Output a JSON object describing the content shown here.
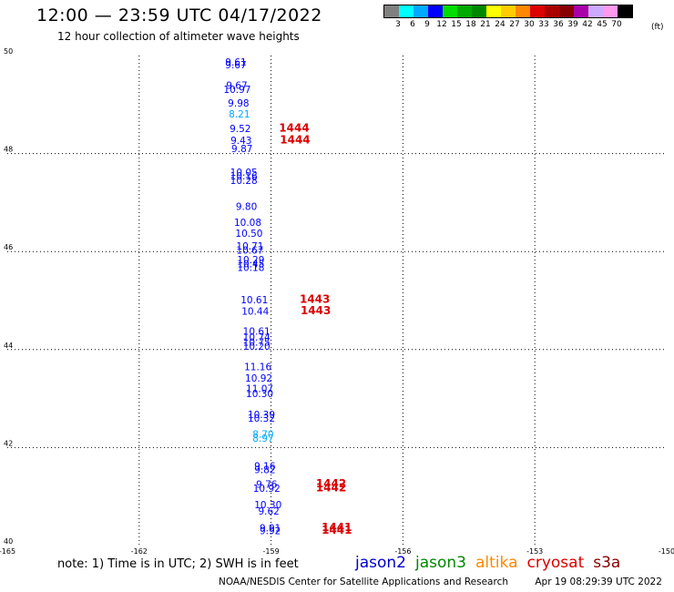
{
  "title": "12:00 — 23:59 UTC 04/17/2022",
  "subtitle": "12 hour collection of altimeter wave heights",
  "color_scale": {
    "unit": "(ft)",
    "colors": [
      "#808080",
      "#00ffff",
      "#00aaff",
      "#0000ff",
      "#00dd00",
      "#00aa00",
      "#008800",
      "#ffff00",
      "#ffcc00",
      "#ff8800",
      "#dd0000",
      "#aa0000",
      "#880000",
      "#aa00aa",
      "#ccaaff",
      "#ff99ee",
      "#000000"
    ],
    "labels": [
      "3",
      "6",
      "9",
      "12",
      "15",
      "18",
      "21",
      "24",
      "27",
      "30",
      "33",
      "36",
      "39",
      "42",
      "45",
      "70"
    ]
  },
  "map": {
    "lat_range": [
      40,
      50
    ],
    "lon_range": [
      -165,
      -150
    ],
    "lat_ticks": [
      "50",
      "48",
      "46",
      "44",
      "42",
      "40"
    ],
    "lon_ticks": [
      "-165",
      "-162",
      "-159",
      "-156",
      "-153",
      "-150"
    ],
    "grid": true,
    "observations": [
      {
        "lat": 49.8,
        "lon": -159.8,
        "value": "9.61",
        "color": "#0000ff"
      },
      {
        "lat": 49.74,
        "lon": -159.8,
        "value": "9.67",
        "color": "#0000ff"
      },
      {
        "lat": 49.32,
        "lon": -159.78,
        "value": "9.67",
        "color": "#0000ff"
      },
      {
        "lat": 49.24,
        "lon": -159.77,
        "value": "10.97",
        "color": "#0000ff"
      },
      {
        "lat": 48.96,
        "lon": -159.74,
        "value": "9.98",
        "color": "#0000ff"
      },
      {
        "lat": 48.74,
        "lon": -159.72,
        "value": "8.21",
        "color": "#00aaff"
      },
      {
        "lat": 48.44,
        "lon": -159.7,
        "value": "9.52",
        "color": "#0000ff"
      },
      {
        "lat": 48.2,
        "lon": -159.68,
        "value": "9.43",
        "color": "#0000ff"
      },
      {
        "lat": 48.03,
        "lon": -159.66,
        "value": "9.87",
        "color": "#0000ff"
      },
      {
        "lat": 47.55,
        "lon": -159.62,
        "value": "10.05",
        "color": "#0000ff"
      },
      {
        "lat": 47.47,
        "lon": -159.62,
        "value": "10.16",
        "color": "#0000ff"
      },
      {
        "lat": 47.38,
        "lon": -159.62,
        "value": "10.28",
        "color": "#0000ff"
      },
      {
        "lat": 46.85,
        "lon": -159.56,
        "value": "9.80",
        "color": "#0000ff"
      },
      {
        "lat": 46.52,
        "lon": -159.53,
        "value": "10.08",
        "color": "#0000ff"
      },
      {
        "lat": 46.3,
        "lon": -159.5,
        "value": "10.50",
        "color": "#0000ff"
      },
      {
        "lat": 46.04,
        "lon": -159.48,
        "value": "10.71",
        "color": "#0000ff"
      },
      {
        "lat": 45.96,
        "lon": -159.48,
        "value": "10.67",
        "color": "#0000ff"
      },
      {
        "lat": 45.76,
        "lon": -159.46,
        "value": "10.29",
        "color": "#0000ff"
      },
      {
        "lat": 45.68,
        "lon": -159.46,
        "value": "10.45",
        "color": "#0000ff"
      },
      {
        "lat": 45.6,
        "lon": -159.46,
        "value": "10.18",
        "color": "#0000ff"
      },
      {
        "lat": 44.94,
        "lon": -159.38,
        "value": "10.61",
        "color": "#0000ff"
      },
      {
        "lat": 44.71,
        "lon": -159.36,
        "value": "10.44",
        "color": "#0000ff"
      },
      {
        "lat": 44.3,
        "lon": -159.33,
        "value": "10.61",
        "color": "#0000ff"
      },
      {
        "lat": 44.18,
        "lon": -159.33,
        "value": "10.74",
        "color": "#0000ff"
      },
      {
        "lat": 44.08,
        "lon": -159.33,
        "value": "10.75",
        "color": "#0000ff"
      },
      {
        "lat": 44.0,
        "lon": -159.33,
        "value": "10.20",
        "color": "#0000ff"
      },
      {
        "lat": 43.58,
        "lon": -159.3,
        "value": "11.16",
        "color": "#0000ff"
      },
      {
        "lat": 43.35,
        "lon": -159.28,
        "value": "10.92",
        "color": "#0000ff"
      },
      {
        "lat": 43.13,
        "lon": -159.26,
        "value": "11.07",
        "color": "#0000ff"
      },
      {
        "lat": 43.03,
        "lon": -159.26,
        "value": "10.30",
        "color": "#0000ff"
      },
      {
        "lat": 42.6,
        "lon": -159.22,
        "value": "10.39",
        "color": "#0000ff"
      },
      {
        "lat": 42.53,
        "lon": -159.22,
        "value": "10.32",
        "color": "#0000ff"
      },
      {
        "lat": 42.2,
        "lon": -159.18,
        "value": "8.70",
        "color": "#00aaff"
      },
      {
        "lat": 42.12,
        "lon": -159.18,
        "value": "8.97",
        "color": "#00aaff"
      },
      {
        "lat": 41.55,
        "lon": -159.14,
        "value": "9.16",
        "color": "#0000ff"
      },
      {
        "lat": 41.48,
        "lon": -159.14,
        "value": "9.82",
        "color": "#0000ff"
      },
      {
        "lat": 41.18,
        "lon": -159.1,
        "value": "9.76",
        "color": "#0000ff"
      },
      {
        "lat": 41.1,
        "lon": -159.1,
        "value": "10.92",
        "color": "#0000ff"
      },
      {
        "lat": 40.76,
        "lon": -159.07,
        "value": "10.30",
        "color": "#0000ff"
      },
      {
        "lat": 40.63,
        "lon": -159.05,
        "value": "9.62",
        "color": "#0000ff"
      },
      {
        "lat": 40.29,
        "lon": -159.02,
        "value": "9.91",
        "color": "#0000ff"
      },
      {
        "lat": 40.23,
        "lon": -159.02,
        "value": "9.92",
        "color": "#0000ff"
      }
    ],
    "pass_labels": [
      {
        "lat": 48.45,
        "lon": -158.82,
        "text": "1444",
        "color": "#dd0000"
      },
      {
        "lat": 48.21,
        "lon": -158.8,
        "text": "1444",
        "color": "#dd0000"
      },
      {
        "lat": 44.95,
        "lon": -158.35,
        "text": "1443",
        "color": "#dd0000"
      },
      {
        "lat": 44.72,
        "lon": -158.33,
        "text": "1443",
        "color": "#dd0000"
      },
      {
        "lat": 41.19,
        "lon": -157.98,
        "text": "1442",
        "color": "#dd0000"
      },
      {
        "lat": 41.11,
        "lon": -157.98,
        "text": "1442",
        "color": "#dd0000"
      },
      {
        "lat": 40.3,
        "lon": -157.85,
        "text": "1441",
        "color": "#dd0000"
      },
      {
        "lat": 40.24,
        "lon": -157.85,
        "text": "1441",
        "color": "#dd0000"
      }
    ]
  },
  "note": "note: 1) Time is in UTC; 2) SWH is in feet",
  "missions": [
    {
      "name": "jason2",
      "color": "#0000cc"
    },
    {
      "name": "jason3",
      "color": "#008800"
    },
    {
      "name": "altika",
      "color": "#ff8800"
    },
    {
      "name": "cryosat",
      "color": "#dd0000"
    },
    {
      "name": "s3a",
      "color": "#880000"
    }
  ],
  "footer": {
    "credit": "NOAA/NESDIS Center for Satellite Applications and Research",
    "timestamp": "Apr 19 08:29:39 UTC 2022"
  }
}
